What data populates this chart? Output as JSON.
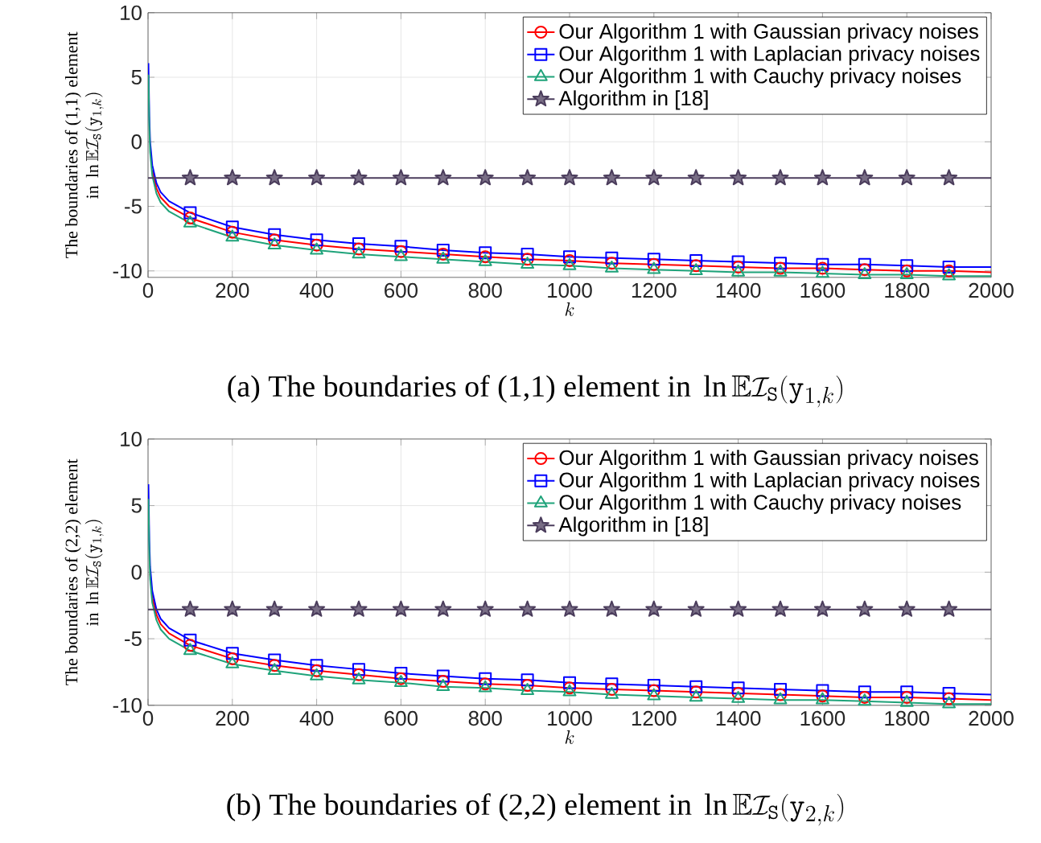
{
  "chart_data": [
    {
      "type": "line",
      "ylabel": "\\begin{array}{c}\\text{The boundaries of (1,1) element}\\\\ \\text{in }\\ln\\mathbb{E}\\mathcal{I}_{\\mathtt{S}}(\\mathtt{y}_{1,k})\\end{array}",
      "xlabel": "k",
      "annotations": [
        "\\text{(a) The boundaries of (1,1) element in }\\ln\\mathbb{E}\\mathcal{I}_{\\mathtt{S}}(\\mathtt{y}_{1,k})"
      ],
      "xlim": [
        0,
        2000
      ],
      "ylim": [
        -10.5,
        10
      ],
      "xticks": [
        0,
        200,
        400,
        600,
        800,
        1000,
        1200,
        1400,
        1600,
        1800,
        2000
      ],
      "yticks": [
        -10,
        -5,
        0,
        5,
        10
      ],
      "grid": true,
      "legend": "top right",
      "series": [
        {
          "name": "Our Algorithm 1 with Gaussian privacy noises",
          "color": "#ff0000",
          "marker": "circle",
          "x": [
            10,
            20,
            30,
            50,
            100,
            200,
            300,
            400,
            500,
            600,
            700,
            800,
            900,
            1000,
            1100,
            1200,
            1300,
            1400,
            1500,
            1600,
            1700,
            1800,
            1900,
            2000
          ],
          "values": [
            -2.2,
            -3.6,
            -4.3,
            -5.0,
            -5.9,
            -7.0,
            -7.6,
            -8.0,
            -8.3,
            -8.5,
            -8.7,
            -8.9,
            -9.1,
            -9.2,
            -9.4,
            -9.5,
            -9.6,
            -9.7,
            -9.8,
            -9.8,
            -9.9,
            -10.0,
            -10.0,
            -10.1
          ]
        },
        {
          "name": "Our Algorithm 1 with Laplacian privacy noises",
          "color": "#0000ff",
          "marker": "square",
          "x": [
            1,
            3,
            5,
            10,
            20,
            30,
            50,
            100,
            200,
            300,
            400,
            500,
            600,
            700,
            800,
            900,
            1000,
            1100,
            1200,
            1300,
            1400,
            1500,
            1600,
            1700,
            1800,
            1900,
            2000
          ],
          "values": [
            6.1,
            2.0,
            0.0,
            -1.8,
            -3.2,
            -3.9,
            -4.6,
            -5.5,
            -6.6,
            -7.2,
            -7.6,
            -7.9,
            -8.1,
            -8.4,
            -8.6,
            -8.7,
            -8.9,
            -9.0,
            -9.1,
            -9.2,
            -9.3,
            -9.4,
            -9.5,
            -9.5,
            -9.6,
            -9.7,
            -9.7
          ]
        },
        {
          "name": "Our Algorithm 1 with Cauchy privacy noises",
          "color": "#1fa37a",
          "marker": "triangle",
          "x": [
            1,
            3,
            5,
            10,
            20,
            30,
            50,
            100,
            200,
            300,
            400,
            500,
            600,
            700,
            800,
            900,
            1000,
            1100,
            1200,
            1300,
            1400,
            1500,
            1600,
            1700,
            1800,
            1900,
            2000
          ],
          "values": [
            5.2,
            1.2,
            -0.8,
            -2.6,
            -4.0,
            -4.7,
            -5.4,
            -6.3,
            -7.4,
            -8.0,
            -8.4,
            -8.7,
            -8.9,
            -9.1,
            -9.3,
            -9.5,
            -9.6,
            -9.8,
            -9.9,
            -10.0,
            -10.1,
            -10.1,
            -10.2,
            -10.3,
            -10.3,
            -10.4,
            -10.4
          ]
        },
        {
          "name": "Algorithm in [18]",
          "color": "#4b3d5c",
          "marker": "star",
          "x": [
            0,
            100,
            200,
            300,
            400,
            500,
            600,
            700,
            800,
            900,
            1000,
            1100,
            1200,
            1300,
            1400,
            1500,
            1600,
            1700,
            1800,
            1900,
            2000
          ],
          "values": [
            -2.8,
            -2.8,
            -2.8,
            -2.8,
            -2.8,
            -2.8,
            -2.8,
            -2.8,
            -2.8,
            -2.8,
            -2.8,
            -2.8,
            -2.8,
            -2.8,
            -2.8,
            -2.8,
            -2.8,
            -2.8,
            -2.8,
            -2.8,
            -2.8
          ]
        }
      ]
    },
    {
      "type": "line",
      "ylabel": "\\begin{array}{c}\\text{The boundaries of (2,2) element}\\\\ \\text{in }\\ln\\mathbb{E}\\mathcal{I}_{\\mathtt{S}}(\\mathtt{y}_{1,k})\\end{array}",
      "xlabel": "k",
      "annotations": [
        "\\text{(b) The boundaries of (2,2) element in }\\ln\\mathbb{E}\\mathcal{I}_{\\mathtt{S}}(\\mathtt{y}_{2,k})"
      ],
      "xlim": [
        0,
        2000
      ],
      "ylim": [
        -10,
        10
      ],
      "xticks": [
        0,
        200,
        400,
        600,
        800,
        1000,
        1200,
        1400,
        1600,
        1800,
        2000
      ],
      "yticks": [
        -10,
        -5,
        0,
        5,
        10
      ],
      "grid": true,
      "legend": "top right",
      "series": [
        {
          "name": "Our Algorithm 1 with Gaussian privacy noises",
          "color": "#ff0000",
          "marker": "circle",
          "x": [
            5,
            10,
            20,
            30,
            50,
            100,
            200,
            300,
            400,
            500,
            600,
            700,
            800,
            900,
            1000,
            1100,
            1200,
            1300,
            1400,
            1500,
            1600,
            1700,
            1800,
            1900,
            2000
          ],
          "values": [
            -0.1,
            -1.9,
            -3.2,
            -3.9,
            -4.6,
            -5.5,
            -6.5,
            -7.0,
            -7.4,
            -7.7,
            -8.0,
            -8.2,
            -8.4,
            -8.5,
            -8.7,
            -8.8,
            -8.9,
            -9.0,
            -9.1,
            -9.2,
            -9.3,
            -9.4,
            -9.4,
            -9.5,
            -9.6
          ]
        },
        {
          "name": "Our Algorithm 1 with Laplacian privacy noises",
          "color": "#0000ff",
          "marker": "square",
          "x": [
            1,
            3,
            5,
            10,
            20,
            30,
            50,
            100,
            200,
            300,
            400,
            500,
            600,
            700,
            800,
            900,
            1000,
            1100,
            1200,
            1300,
            1400,
            1500,
            1600,
            1700,
            1800,
            1900,
            2000
          ],
          "values": [
            6.6,
            2.4,
            0.4,
            -1.4,
            -2.8,
            -3.5,
            -4.2,
            -5.1,
            -6.1,
            -6.6,
            -7.0,
            -7.3,
            -7.6,
            -7.8,
            -8.0,
            -8.1,
            -8.3,
            -8.4,
            -8.5,
            -8.6,
            -8.7,
            -8.8,
            -8.9,
            -9.0,
            -9.0,
            -9.1,
            -9.2
          ]
        },
        {
          "name": "Our Algorithm 1 with Cauchy privacy noises",
          "color": "#1fa37a",
          "marker": "triangle",
          "x": [
            1,
            3,
            5,
            10,
            20,
            30,
            50,
            100,
            200,
            300,
            400,
            500,
            600,
            700,
            800,
            900,
            1000,
            1100,
            1200,
            1300,
            1400,
            1500,
            1600,
            1700,
            1800,
            1900,
            2000
          ],
          "values": [
            5.5,
            1.5,
            -0.5,
            -2.3,
            -3.6,
            -4.3,
            -5.0,
            -5.9,
            -6.9,
            -7.4,
            -7.8,
            -8.1,
            -8.3,
            -8.6,
            -8.7,
            -8.9,
            -9.0,
            -9.2,
            -9.3,
            -9.4,
            -9.5,
            -9.6,
            -9.6,
            -9.7,
            -9.8,
            -9.9,
            -9.9
          ]
        },
        {
          "name": "Algorithm in [18]",
          "color": "#4b3d5c",
          "marker": "star",
          "x": [
            0,
            100,
            200,
            300,
            400,
            500,
            600,
            700,
            800,
            900,
            1000,
            1100,
            1200,
            1300,
            1400,
            1500,
            1600,
            1700,
            1800,
            1900,
            2000
          ],
          "values": [
            -2.8,
            -2.8,
            -2.8,
            -2.8,
            -2.8,
            -2.8,
            -2.8,
            -2.8,
            -2.8,
            -2.8,
            -2.8,
            -2.8,
            -2.8,
            -2.8,
            -2.8,
            -2.8,
            -2.8,
            -2.8,
            -2.8,
            -2.8,
            -2.8
          ]
        }
      ]
    }
  ]
}
